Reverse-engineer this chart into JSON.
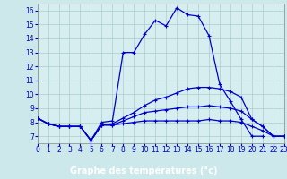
{
  "xlabel": "Graphe des températures (°c)",
  "xlim": [
    0,
    23
  ],
  "ylim": [
    6.5,
    16.5
  ],
  "background_color": "#cce8ea",
  "plot_bg_color": "#d6eef0",
  "grid_color": "#aacccc",
  "line_color": "#0000cc",
  "bottom_bar_color": "#0000aa",
  "bottom_bar_text_color": "#ffffff",
  "lines": [
    {
      "x": [
        0,
        1,
        2,
        3,
        4,
        5,
        6,
        7,
        8,
        9,
        10,
        11,
        12,
        13,
        14,
        15,
        16,
        17,
        18,
        19,
        20,
        21
      ],
      "y": [
        8.3,
        7.9,
        7.7,
        7.7,
        7.7,
        6.7,
        8.0,
        8.1,
        13.0,
        13.0,
        14.3,
        15.3,
        14.9,
        16.2,
        15.7,
        15.6,
        14.2,
        10.7,
        9.5,
        8.2,
        7.0,
        7.0
      ]
    },
    {
      "x": [
        0,
        1,
        2,
        3,
        4,
        5,
        6,
        7,
        8,
        9,
        10,
        11,
        12,
        13,
        14,
        15,
        16,
        17,
        18,
        19,
        20,
        21,
        22,
        23
      ],
      "y": [
        8.3,
        7.9,
        7.7,
        7.7,
        7.7,
        6.7,
        7.8,
        7.9,
        8.3,
        8.7,
        9.2,
        9.6,
        9.8,
        10.1,
        10.4,
        10.5,
        10.5,
        10.4,
        10.2,
        9.8,
        8.2,
        7.7,
        7.0,
        7.0
      ]
    },
    {
      "x": [
        0,
        1,
        2,
        3,
        4,
        5,
        6,
        7,
        8,
        9,
        10,
        11,
        12,
        13,
        14,
        15,
        16,
        17,
        18,
        19,
        20,
        21,
        22,
        23
      ],
      "y": [
        8.3,
        7.9,
        7.7,
        7.7,
        7.7,
        6.7,
        7.8,
        7.8,
        8.1,
        8.4,
        8.7,
        8.8,
        8.9,
        9.0,
        9.1,
        9.1,
        9.2,
        9.1,
        9.0,
        8.8,
        8.2,
        7.7,
        7.0,
        7.0
      ]
    },
    {
      "x": [
        0,
        1,
        2,
        3,
        4,
        5,
        6,
        7,
        8,
        9,
        10,
        11,
        12,
        13,
        14,
        15,
        16,
        17,
        18,
        19,
        20,
        21,
        22,
        23
      ],
      "y": [
        8.3,
        7.9,
        7.7,
        7.7,
        7.7,
        6.7,
        7.8,
        7.8,
        7.9,
        8.0,
        8.1,
        8.1,
        8.1,
        8.1,
        8.1,
        8.1,
        8.2,
        8.1,
        8.1,
        8.0,
        7.7,
        7.4,
        7.0,
        7.0
      ]
    }
  ],
  "xticks": [
    0,
    1,
    2,
    3,
    4,
    5,
    6,
    7,
    8,
    9,
    10,
    11,
    12,
    13,
    14,
    15,
    16,
    17,
    18,
    19,
    20,
    21,
    22,
    23
  ],
  "yticks": [
    7,
    8,
    9,
    10,
    11,
    12,
    13,
    14,
    15,
    16
  ],
  "tick_fontsize": 5.5,
  "xlabel_fontsize": 7.0
}
